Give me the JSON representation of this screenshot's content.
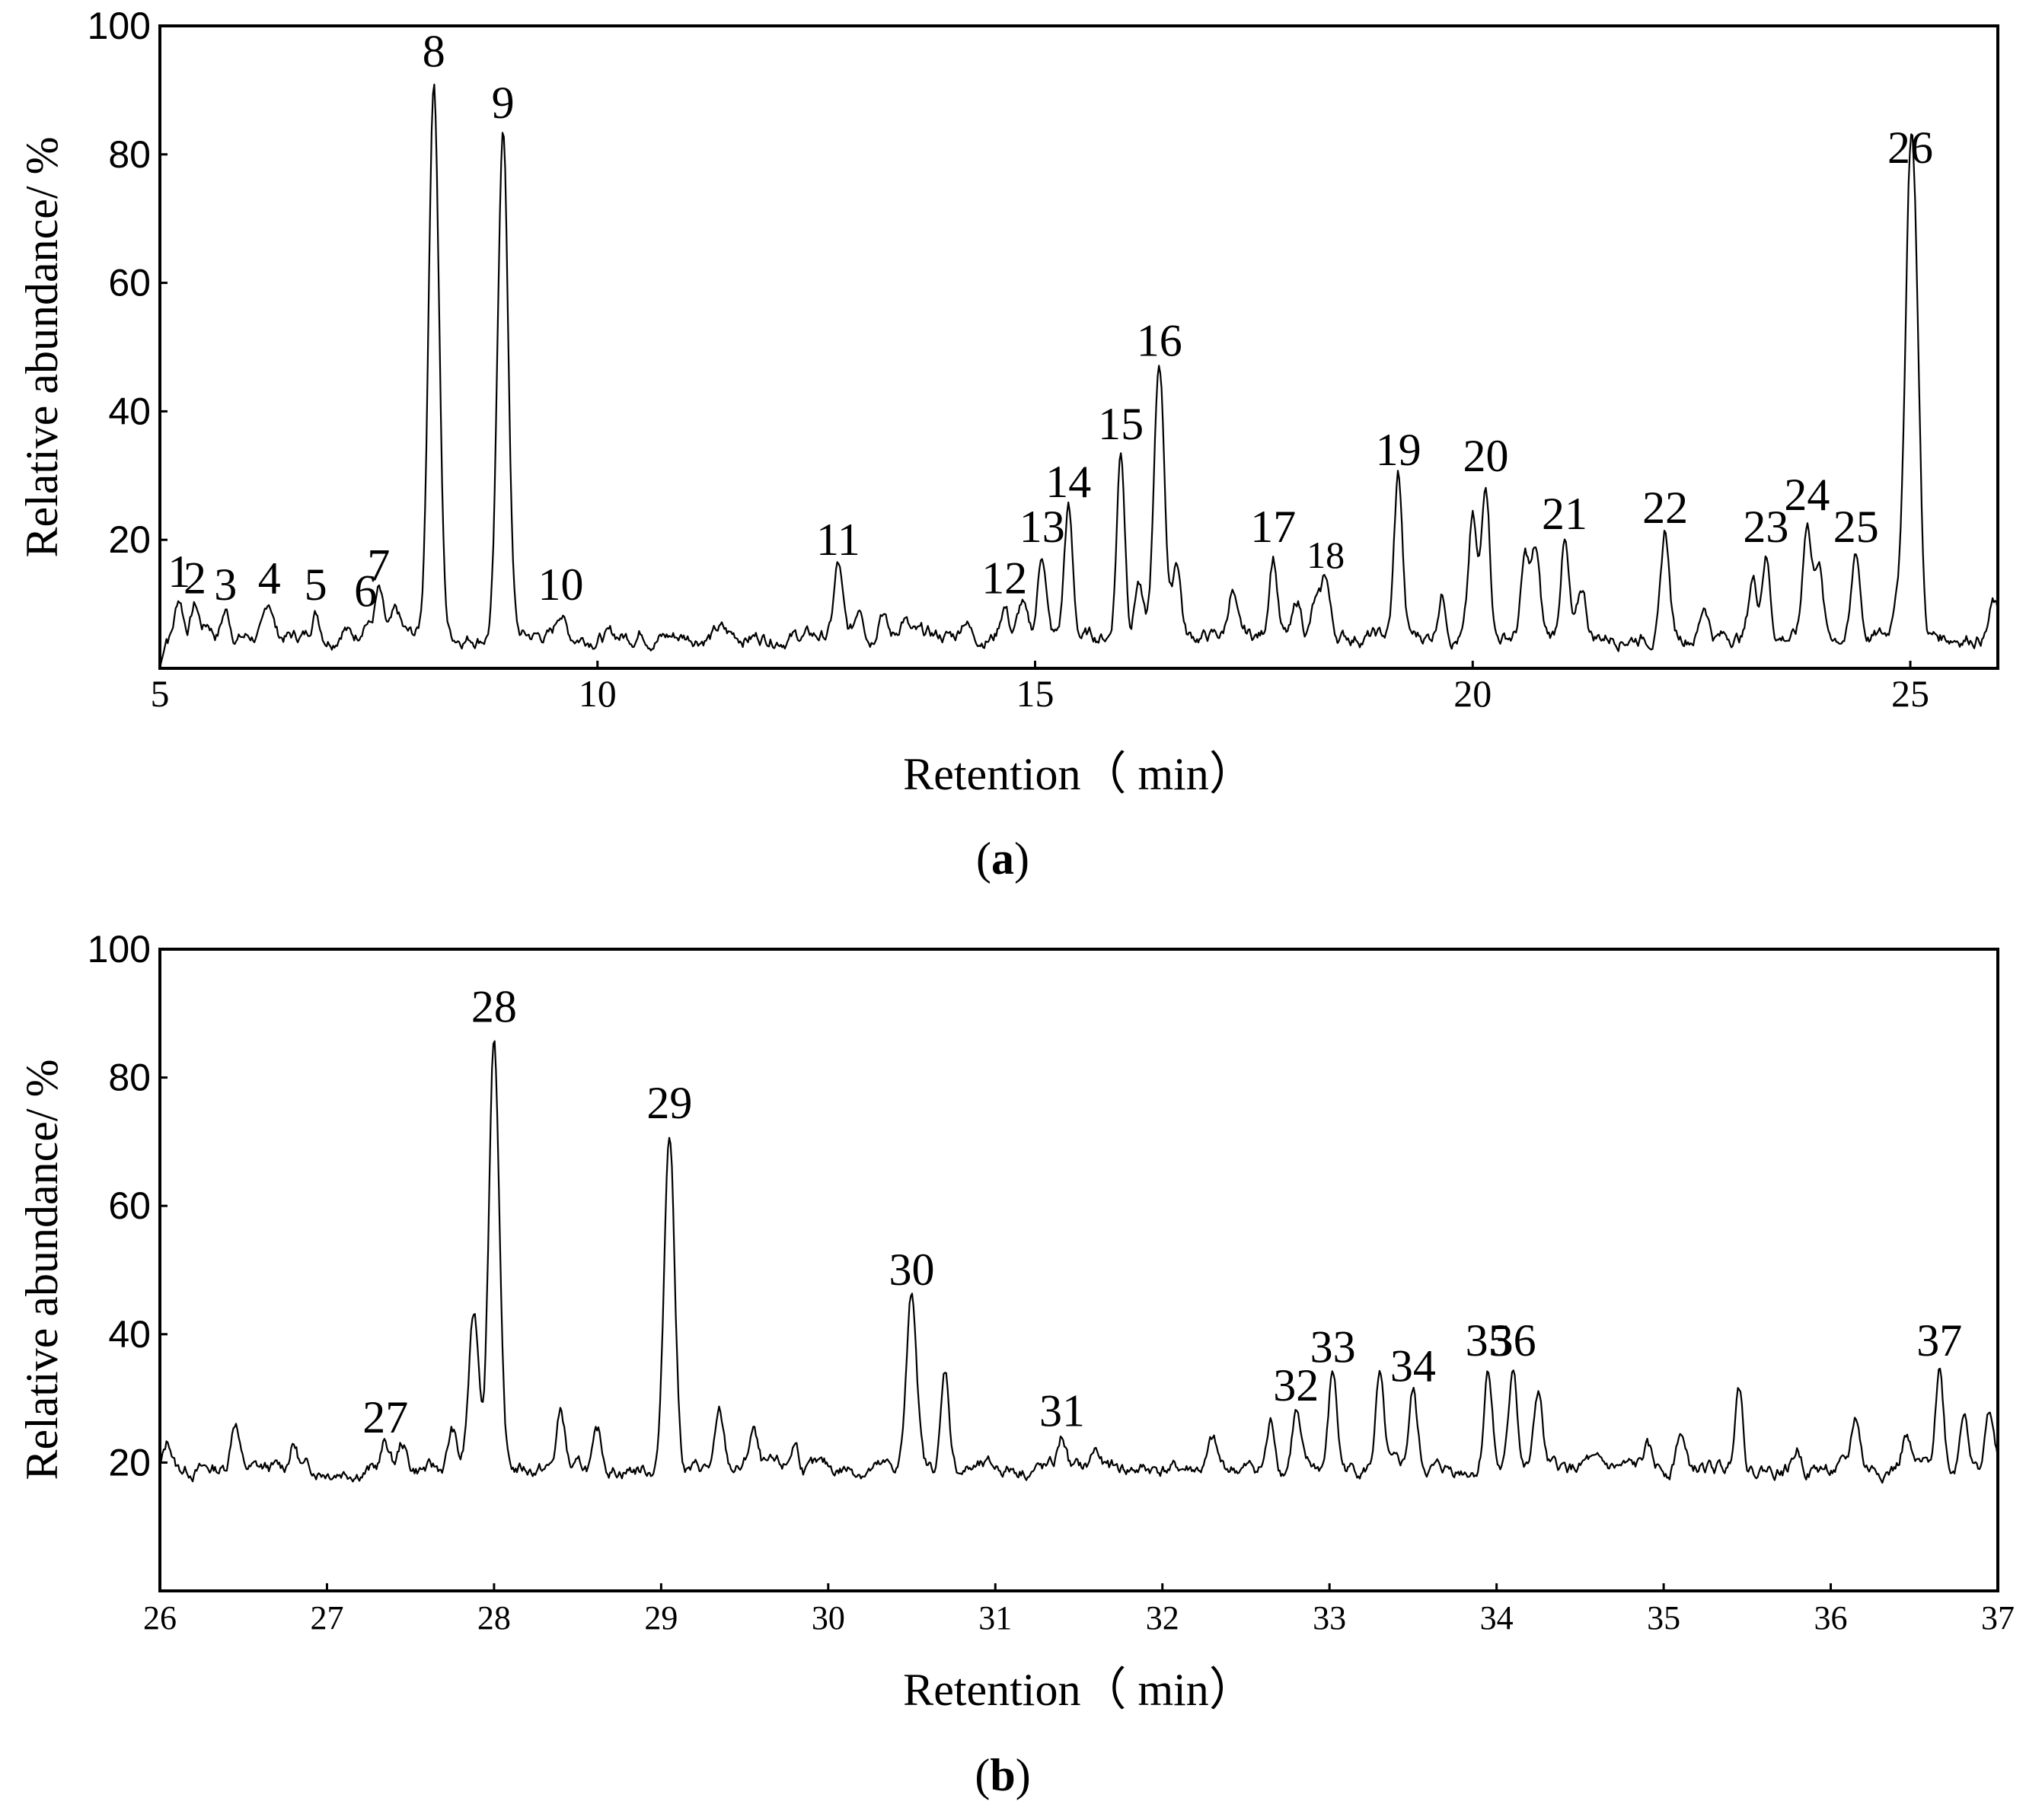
{
  "chart_data": [
    {
      "type": "line",
      "panel_label": "a",
      "xlabel": "Retention（ min）",
      "ylabel": "Relative abundance/ %",
      "xlim": [
        5,
        26
      ],
      "ylim": [
        0,
        100
      ],
      "xticks": [
        5,
        10,
        15,
        20,
        25
      ],
      "yticks": [
        20,
        40,
        60,
        80,
        100
      ],
      "baseline": 5,
      "peaks": [
        {
          "label": "1",
          "x": 5.22,
          "y": 11
        },
        {
          "label": "2",
          "x": 5.4,
          "y": 10
        },
        {
          "label": "3",
          "x": 5.75,
          "y": 9
        },
        {
          "label": "4",
          "x": 6.25,
          "y": 10
        },
        {
          "label": "5",
          "x": 6.78,
          "y": 9
        },
        {
          "label": "6",
          "x": 7.35,
          "y": 8
        },
        {
          "label": "7",
          "x": 7.5,
          "y": 12
        },
        {
          "label": "8",
          "x": 8.13,
          "y": 92
        },
        {
          "label": "9",
          "x": 8.92,
          "y": 84
        },
        {
          "label": "10",
          "x": 9.58,
          "y": 9
        },
        {
          "label": "11",
          "x": 12.75,
          "y": 16
        },
        {
          "label": "12",
          "x": 14.65,
          "y": 10
        },
        {
          "label": "13",
          "x": 15.08,
          "y": 18
        },
        {
          "label": "14",
          "x": 15.38,
          "y": 25
        },
        {
          "label": "15",
          "x": 15.98,
          "y": 34
        },
        {
          "label": "16",
          "x": 16.42,
          "y": 47
        },
        {
          "label": "17",
          "x": 17.72,
          "y": 18
        },
        {
          "label": "18",
          "x": 18.32,
          "y": 14
        },
        {
          "label": "19",
          "x": 19.15,
          "y": 30
        },
        {
          "label": "20",
          "x": 20.15,
          "y": 29
        },
        {
          "label": "21",
          "x": 21.05,
          "y": 20
        },
        {
          "label": "22",
          "x": 22.2,
          "y": 21
        },
        {
          "label": "23",
          "x": 23.35,
          "y": 18
        },
        {
          "label": "24",
          "x": 23.82,
          "y": 23
        },
        {
          "label": "25",
          "x": 24.38,
          "y": 18
        },
        {
          "label": "26",
          "x": 25.0,
          "y": 77
        }
      ],
      "minor_peaks": [
        {
          "x": 5.55,
          "y": 7
        },
        {
          "x": 7.1,
          "y": 7
        },
        {
          "x": 7.7,
          "y": 8
        },
        {
          "x": 10.5,
          "y": 6
        },
        {
          "x": 11.4,
          "y": 6
        },
        {
          "x": 13.0,
          "y": 10
        },
        {
          "x": 13.25,
          "y": 10
        },
        {
          "x": 13.5,
          "y": 8
        },
        {
          "x": 14.2,
          "y": 8
        },
        {
          "x": 14.85,
          "y": 10
        },
        {
          "x": 16.18,
          "y": 14
        },
        {
          "x": 16.62,
          "y": 17
        },
        {
          "x": 17.25,
          "y": 12
        },
        {
          "x": 18.0,
          "y": 10
        },
        {
          "x": 18.2,
          "y": 10
        },
        {
          "x": 19.65,
          "y": 12
        },
        {
          "x": 20.0,
          "y": 23
        },
        {
          "x": 20.6,
          "y": 17
        },
        {
          "x": 20.72,
          "y": 18
        },
        {
          "x": 21.25,
          "y": 12
        },
        {
          "x": 22.65,
          "y": 10
        },
        {
          "x": 23.2,
          "y": 14
        },
        {
          "x": 23.95,
          "y": 17
        },
        {
          "x": 24.85,
          "y": 12
        },
        {
          "x": 25.08,
          "y": 30
        },
        {
          "x": 25.95,
          "y": 10
        }
      ]
    },
    {
      "type": "line",
      "panel_label": "b",
      "xlabel": "Retention（ min）",
      "ylabel": "Relative abundance/ %",
      "xlim": [
        26,
        37
      ],
      "ylim": [
        0,
        100
      ],
      "xticks": [
        26,
        27,
        28,
        29,
        30,
        31,
        32,
        33,
        34,
        35,
        36,
        37
      ],
      "yticks": [
        20,
        40,
        60,
        80,
        100
      ],
      "baseline": 19,
      "peaks": [
        {
          "label": "27",
          "x": 27.35,
          "y": 23
        },
        {
          "label": "28",
          "x": 28.0,
          "y": 87
        },
        {
          "label": "29",
          "x": 29.05,
          "y": 72
        },
        {
          "label": "30",
          "x": 30.5,
          "y": 46
        },
        {
          "label": "31",
          "x": 31.4,
          "y": 24
        },
        {
          "label": "32",
          "x": 32.8,
          "y": 28
        },
        {
          "label": "33",
          "x": 33.02,
          "y": 34
        },
        {
          "label": "34",
          "x": 33.5,
          "y": 31
        },
        {
          "label": "35",
          "x": 33.95,
          "y": 35
        },
        {
          "label": "36",
          "x": 34.1,
          "y": 35
        },
        {
          "label": "37",
          "x": 36.65,
          "y": 35
        }
      ],
      "minor_peaks": [
        {
          "x": 26.05,
          "y": 23
        },
        {
          "x": 26.45,
          "y": 27
        },
        {
          "x": 26.8,
          "y": 23
        },
        {
          "x": 27.0,
          "y": 17
        },
        {
          "x": 27.45,
          "y": 23
        },
        {
          "x": 27.75,
          "y": 25
        },
        {
          "x": 27.88,
          "y": 43
        },
        {
          "x": 28.4,
          "y": 28
        },
        {
          "x": 28.62,
          "y": 24
        },
        {
          "x": 29.35,
          "y": 27
        },
        {
          "x": 29.55,
          "y": 25
        },
        {
          "x": 29.8,
          "y": 23
        },
        {
          "x": 30.7,
          "y": 34
        },
        {
          "x": 31.6,
          "y": 22
        },
        {
          "x": 32.3,
          "y": 23
        },
        {
          "x": 32.65,
          "y": 26
        },
        {
          "x": 33.3,
          "y": 33
        },
        {
          "x": 34.25,
          "y": 31
        },
        {
          "x": 34.55,
          "y": 20
        },
        {
          "x": 34.9,
          "y": 22
        },
        {
          "x": 35.1,
          "y": 25
        },
        {
          "x": 35.45,
          "y": 33
        },
        {
          "x": 35.8,
          "y": 22
        },
        {
          "x": 36.15,
          "y": 27
        },
        {
          "x": 36.45,
          "y": 24
        },
        {
          "x": 36.8,
          "y": 29
        },
        {
          "x": 36.95,
          "y": 28
        }
      ]
    }
  ]
}
